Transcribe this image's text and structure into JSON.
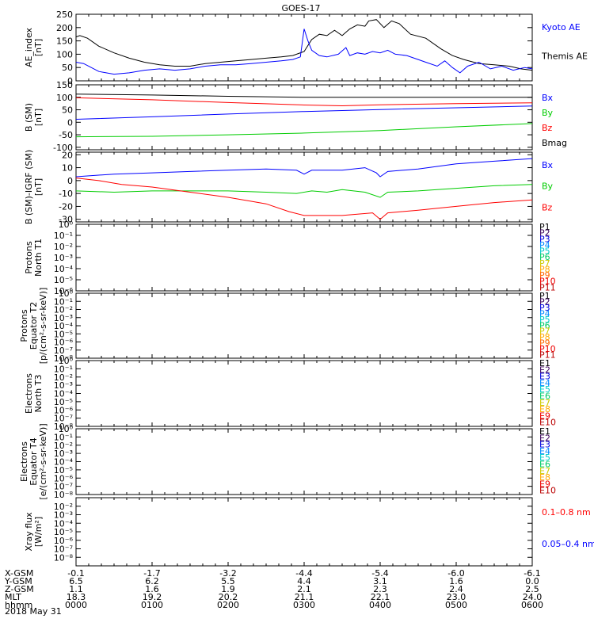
{
  "title": "GOES-17",
  "date_label": "2018 May 31",
  "colors": {
    "black": "#000000",
    "blue": "#0000ff",
    "red": "#ff0000",
    "green": "#00cc00"
  },
  "ephemeris": {
    "rows": [
      {
        "label": "X-GSM",
        "values": [
          "-0.1",
          "-1.7",
          "-3.2",
          "-4.4",
          "-5.4",
          "-6.0",
          "-6.1"
        ]
      },
      {
        "label": "Y-GSM",
        "values": [
          "6.5",
          "6.2",
          "5.5",
          "4.4",
          "3.1",
          "1.6",
          "0.0"
        ]
      },
      {
        "label": "Z-GSM",
        "values": [
          "1.1",
          "1.6",
          "1.9",
          "2.1",
          "2.3",
          "2.4",
          "2.5"
        ]
      },
      {
        "label": "MLT",
        "values": [
          "18.3",
          "19.2",
          "20.2",
          "21.1",
          "22.1",
          "23.0",
          "24.0"
        ]
      },
      {
        "label": "hhmm",
        "values": [
          "0000",
          "0100",
          "0200",
          "0300",
          "0400",
          "0500",
          "0600"
        ]
      }
    ]
  },
  "chart_data": [
    {
      "type": "line",
      "ylabel": [
        "AE_index",
        "[nT]"
      ],
      "ylim": [
        0,
        250
      ],
      "yticks": [
        "0",
        "50",
        "100",
        "150",
        "200",
        "250"
      ],
      "legend": [
        {
          "text": "Kyoto AE",
          "color": "#0000ff"
        },
        {
          "text": "Themis AE",
          "color": "#000000"
        }
      ],
      "series": [
        {
          "name": "Themis AE",
          "color": "#000000",
          "points": [
            [
              0,
              165
            ],
            [
              0.05,
              170
            ],
            [
              0.15,
              160
            ],
            [
              0.3,
              130
            ],
            [
              0.5,
              105
            ],
            [
              0.7,
              85
            ],
            [
              0.9,
              70
            ],
            [
              1.1,
              60
            ],
            [
              1.3,
              55
            ],
            [
              1.5,
              55
            ],
            [
              1.7,
              65
            ],
            [
              1.9,
              70
            ],
            [
              2.1,
              75
            ],
            [
              2.3,
              80
            ],
            [
              2.5,
              85
            ],
            [
              2.7,
              90
            ],
            [
              2.85,
              95
            ],
            [
              3.0,
              110
            ],
            [
              3.1,
              155
            ],
            [
              3.2,
              175
            ],
            [
              3.3,
              170
            ],
            [
              3.4,
              190
            ],
            [
              3.5,
              170
            ],
            [
              3.6,
              195
            ],
            [
              3.7,
              210
            ],
            [
              3.8,
              205
            ],
            [
              3.85,
              225
            ],
            [
              3.95,
              230
            ],
            [
              4.05,
              200
            ],
            [
              4.15,
              225
            ],
            [
              4.25,
              215
            ],
            [
              4.4,
              175
            ],
            [
              4.6,
              160
            ],
            [
              4.8,
              120
            ],
            [
              4.95,
              95
            ],
            [
              5.1,
              80
            ],
            [
              5.3,
              65
            ],
            [
              5.5,
              60
            ],
            [
              5.7,
              55
            ],
            [
              5.85,
              45
            ],
            [
              6.0,
              40
            ]
          ]
        },
        {
          "name": "Kyoto AE",
          "color": "#0000ff",
          "points": [
            [
              0,
              70
            ],
            [
              0.1,
              65
            ],
            [
              0.2,
              50
            ],
            [
              0.3,
              35
            ],
            [
              0.5,
              25
            ],
            [
              0.7,
              30
            ],
            [
              0.9,
              40
            ],
            [
              1.1,
              45
            ],
            [
              1.3,
              40
            ],
            [
              1.5,
              45
            ],
            [
              1.7,
              55
            ],
            [
              1.9,
              60
            ],
            [
              2.1,
              60
            ],
            [
              2.3,
              65
            ],
            [
              2.5,
              70
            ],
            [
              2.7,
              75
            ],
            [
              2.85,
              80
            ],
            [
              2.95,
              90
            ],
            [
              3.0,
              195
            ],
            [
              3.05,
              150
            ],
            [
              3.1,
              115
            ],
            [
              3.2,
              95
            ],
            [
              3.3,
              90
            ],
            [
              3.45,
              100
            ],
            [
              3.55,
              125
            ],
            [
              3.6,
              95
            ],
            [
              3.7,
              105
            ],
            [
              3.8,
              100
            ],
            [
              3.9,
              110
            ],
            [
              4.0,
              105
            ],
            [
              4.1,
              115
            ],
            [
              4.2,
              100
            ],
            [
              4.35,
              95
            ],
            [
              4.5,
              80
            ],
            [
              4.6,
              70
            ],
            [
              4.75,
              55
            ],
            [
              4.85,
              75
            ],
            [
              4.95,
              50
            ],
            [
              5.05,
              30
            ],
            [
              5.15,
              55
            ],
            [
              5.3,
              70
            ],
            [
              5.45,
              45
            ],
            [
              5.6,
              55
            ],
            [
              5.75,
              40
            ],
            [
              5.9,
              50
            ],
            [
              6.0,
              45
            ]
          ]
        }
      ]
    },
    {
      "type": "line",
      "ylabel": [
        "B (SM)",
        "[nT]"
      ],
      "ylim": [
        -110,
        150
      ],
      "yticks": [
        "-100",
        "-50",
        "0",
        "50",
        "100",
        "150"
      ],
      "ytick_values": [
        -100,
        -50,
        0,
        50,
        100,
        150
      ],
      "legend": [
        {
          "text": "Bx",
          "color": "#0000ff"
        },
        {
          "text": "By",
          "color": "#00cc00"
        },
        {
          "text": "Bz",
          "color": "#ff0000"
        },
        {
          "text": "Bmag",
          "color": "#000000"
        }
      ],
      "series": [
        {
          "name": "Bmag",
          "color": "#000000",
          "points": [
            [
              0,
              113
            ],
            [
              1,
              109
            ],
            [
              2,
              104
            ],
            [
              3,
              100
            ],
            [
              4,
              100
            ],
            [
              5,
              100
            ],
            [
              6,
              100
            ]
          ]
        },
        {
          "name": "Bz",
          "color": "#ff0000",
          "points": [
            [
              0,
              98
            ],
            [
              1,
              90
            ],
            [
              2,
              79
            ],
            [
              3,
              69
            ],
            [
              3.5,
              66
            ],
            [
              4,
              70
            ],
            [
              5,
              75
            ],
            [
              6,
              78
            ]
          ]
        },
        {
          "name": "Bx",
          "color": "#0000ff",
          "points": [
            [
              0,
              12
            ],
            [
              1,
              22
            ],
            [
              2,
              33
            ],
            [
              3,
              43
            ],
            [
              4,
              51
            ],
            [
              5,
              58
            ],
            [
              6,
              65
            ]
          ]
        },
        {
          "name": "By",
          "color": "#00cc00",
          "points": [
            [
              0,
              -58
            ],
            [
              1,
              -56
            ],
            [
              2,
              -50
            ],
            [
              3,
              -43
            ],
            [
              4,
              -33
            ],
            [
              5,
              -18
            ],
            [
              6,
              -5
            ]
          ]
        }
      ]
    },
    {
      "type": "line",
      "ylabel": [
        "B (SM)-IGRF (SM)",
        "[nT]"
      ],
      "ylim": [
        -32,
        22
      ],
      "yticks": [
        "-30",
        "-20",
        "-10",
        "0",
        "10",
        "20"
      ],
      "ytick_values": [
        -30,
        -20,
        -10,
        0,
        10,
        20
      ],
      "legend": [
        {
          "text": "Bx",
          "color": "#0000ff"
        },
        {
          "text": "By",
          "color": "#00cc00"
        },
        {
          "text": "Bz",
          "color": "#ff0000"
        }
      ],
      "series": [
        {
          "name": "Bx",
          "color": "#0000ff",
          "points": [
            [
              0,
              3
            ],
            [
              0.5,
              5
            ],
            [
              1,
              6
            ],
            [
              1.5,
              7
            ],
            [
              2,
              8
            ],
            [
              2.5,
              9
            ],
            [
              2.9,
              8
            ],
            [
              3.0,
              5
            ],
            [
              3.1,
              8
            ],
            [
              3.5,
              8
            ],
            [
              3.8,
              10
            ],
            [
              3.95,
              6
            ],
            [
              4.0,
              3
            ],
            [
              4.1,
              7
            ],
            [
              4.5,
              9
            ],
            [
              5,
              13
            ],
            [
              5.5,
              15
            ],
            [
              6,
              17
            ]
          ]
        },
        {
          "name": "By",
          "color": "#00cc00",
          "points": [
            [
              0,
              -8
            ],
            [
              0.5,
              -9
            ],
            [
              1,
              -8
            ],
            [
              1.5,
              -8
            ],
            [
              2,
              -8
            ],
            [
              2.5,
              -9
            ],
            [
              2.9,
              -10
            ],
            [
              3.1,
              -8
            ],
            [
              3.3,
              -9
            ],
            [
              3.5,
              -7
            ],
            [
              3.8,
              -9
            ],
            [
              4.0,
              -13
            ],
            [
              4.1,
              -9
            ],
            [
              4.5,
              -8
            ],
            [
              5,
              -6
            ],
            [
              5.5,
              -4
            ],
            [
              6,
              -3
            ]
          ]
        },
        {
          "name": "Bz",
          "color": "#ff0000",
          "points": [
            [
              0,
              2
            ],
            [
              0.3,
              0
            ],
            [
              0.6,
              -3
            ],
            [
              1,
              -5
            ],
            [
              1.5,
              -9
            ],
            [
              2,
              -13
            ],
            [
              2.5,
              -18
            ],
            [
              2.8,
              -24
            ],
            [
              3.0,
              -27
            ],
            [
              3.5,
              -27
            ],
            [
              3.9,
              -25
            ],
            [
              4.0,
              -30
            ],
            [
              4.1,
              -25
            ],
            [
              4.5,
              -23
            ],
            [
              5,
              -20
            ],
            [
              5.5,
              -17
            ],
            [
              6,
              -15
            ]
          ]
        }
      ]
    },
    {
      "type": "line",
      "ylabel": [
        "Protons",
        "North T1"
      ],
      "yscale": "log",
      "yticks": [
        "10⁰",
        "10⁻¹",
        "10⁻²",
        "10⁻³",
        "10⁻⁴",
        "10⁻⁵",
        "10⁻⁶"
      ],
      "legend": [
        {
          "text": "P1",
          "color": "#000000"
        },
        {
          "text": "P2",
          "color": "#3a005a"
        },
        {
          "text": "P3",
          "color": "#0000dd"
        },
        {
          "text": "P4",
          "color": "#0088ff"
        },
        {
          "text": "P5",
          "color": "#00cccc"
        },
        {
          "text": "P6",
          "color": "#00cc66"
        },
        {
          "text": "P7",
          "color": "#cccc00"
        },
        {
          "text": "P8",
          "color": "#ffaa00"
        },
        {
          "text": "P9",
          "color": "#ff6600"
        },
        {
          "text": "P10",
          "color": "#ee0000"
        },
        {
          "text": "P11",
          "color": "#bb0000"
        }
      ],
      "series": []
    },
    {
      "type": "line",
      "ylabel": [
        "Protons",
        "Equator T2",
        "[p/(cm²-s-sr-keV)]"
      ],
      "yscale": "log",
      "yticks": [
        "10⁰",
        "10⁻¹",
        "10⁻²",
        "10⁻³",
        "10⁻⁴",
        "10⁻⁵",
        "10⁻⁶",
        "10⁻⁷",
        "10⁻⁸"
      ],
      "legend": [
        {
          "text": "P1",
          "color": "#000000"
        },
        {
          "text": "P2",
          "color": "#3a005a"
        },
        {
          "text": "P3",
          "color": "#0000dd"
        },
        {
          "text": "P4",
          "color": "#0088ff"
        },
        {
          "text": "P5",
          "color": "#00cccc"
        },
        {
          "text": "P6",
          "color": "#00cc66"
        },
        {
          "text": "P7",
          "color": "#cccc00"
        },
        {
          "text": "P8",
          "color": "#ffaa00"
        },
        {
          "text": "P9",
          "color": "#ff6600"
        },
        {
          "text": "P10",
          "color": "#ee0000"
        },
        {
          "text": "P11",
          "color": "#bb0000"
        }
      ],
      "series": []
    },
    {
      "type": "line",
      "ylabel": [
        "Electrons",
        "North T3"
      ],
      "yscale": "log",
      "yticks": [
        "10⁰",
        "10⁻¹",
        "10⁻²",
        "10⁻³",
        "10⁻⁴",
        "10⁻⁵",
        "10⁻⁶",
        "10⁻⁷",
        "10⁻⁸"
      ],
      "legend": [
        {
          "text": "E1",
          "color": "#000000"
        },
        {
          "text": "E2",
          "color": "#3a005a"
        },
        {
          "text": "E3",
          "color": "#0000dd"
        },
        {
          "text": "E4",
          "color": "#0088ff"
        },
        {
          "text": "E5",
          "color": "#00cccc"
        },
        {
          "text": "E6",
          "color": "#00cc66"
        },
        {
          "text": "E7",
          "color": "#cccc00"
        },
        {
          "text": "E8",
          "color": "#ffaa00"
        },
        {
          "text": "E9",
          "color": "#ee0000"
        },
        {
          "text": "E10",
          "color": "#bb0000"
        }
      ],
      "series": []
    },
    {
      "type": "line",
      "ylabel": [
        "Electrons",
        "Equator T4",
        "[e/(cm²-s-sr-keV)]"
      ],
      "yscale": "log",
      "yticks": [
        "10⁰",
        "10⁻¹",
        "10⁻²",
        "10⁻³",
        "10⁻⁴",
        "10⁻⁵",
        "10⁻⁶",
        "10⁻⁷",
        "10⁻⁸"
      ],
      "legend": [
        {
          "text": "E1",
          "color": "#000000"
        },
        {
          "text": "E2",
          "color": "#3a005a"
        },
        {
          "text": "E3",
          "color": "#0000dd"
        },
        {
          "text": "E4",
          "color": "#0088ff"
        },
        {
          "text": "E5",
          "color": "#00cccc"
        },
        {
          "text": "E6",
          "color": "#00cc66"
        },
        {
          "text": "E7",
          "color": "#cccc00"
        },
        {
          "text": "E8",
          "color": "#ffaa00"
        },
        {
          "text": "E9",
          "color": "#ee0000"
        },
        {
          "text": "E10",
          "color": "#bb0000"
        }
      ],
      "series": []
    },
    {
      "type": "line",
      "ylabel": [
        "Xray flux",
        "[W/m²]"
      ],
      "yscale": "log",
      "yticks": [
        "10⁻²",
        "10⁻³",
        "10⁻⁴",
        "10⁻⁵",
        "10⁻⁶",
        "10⁻⁷",
        "10⁻⁸"
      ],
      "ytick_indices": [
        1,
        2,
        3,
        4,
        5,
        6,
        7
      ],
      "legend": [
        {
          "text": "0.1–0.8 nm",
          "color": "#ff0000"
        },
        {
          "text": "0.05–0.4 nm",
          "color": "#0000ff"
        }
      ],
      "series": []
    }
  ]
}
